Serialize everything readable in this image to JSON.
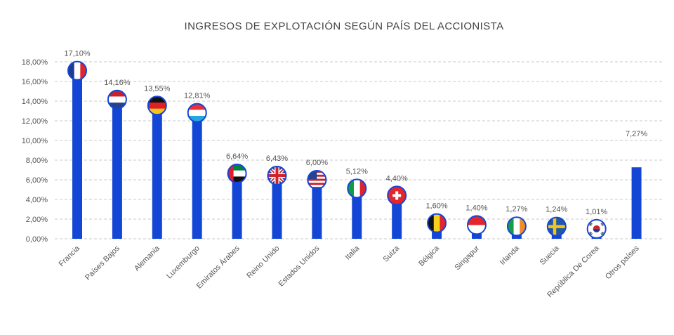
{
  "chart_data": {
    "type": "bar",
    "title": "INGRESOS DE EXPLOTACIÓN SEGÚN PAÍS DEL ACCIONISTA",
    "xlabel": "",
    "ylabel": "",
    "ylim": [
      0,
      18
    ],
    "yticks": [
      "0,00%",
      "2,00%",
      "4,00%",
      "6,00%",
      "8,00%",
      "10,00%",
      "12,00%",
      "14,00%",
      "16,00%",
      "18,00%"
    ],
    "grid": true,
    "bar_color": "#1446d6",
    "categories": [
      "Francia",
      "Países Bajos",
      "Alemania",
      "Luxemburgo",
      "Emiratos Árabes",
      "Reino Unido",
      "Estados Unidos",
      "Italia",
      "Suiza",
      "Bélgica",
      "Singapur",
      "Irlanda",
      "Suecia",
      "República De Corea",
      "Otros países"
    ],
    "values": [
      17.1,
      14.16,
      13.55,
      12.81,
      6.64,
      6.43,
      6.0,
      5.12,
      4.4,
      1.6,
      1.4,
      1.27,
      1.24,
      1.01,
      7.27
    ],
    "data_labels": [
      "17,10%",
      "14,16%",
      "13,55%",
      "12,81%",
      "6,64%",
      "6,43%",
      "6,00%",
      "5,12%",
      "4,40%",
      "1,60%",
      "1,40%",
      "1,27%",
      "1,24%",
      "1,01%",
      "7,27%"
    ],
    "flag_icons": [
      "flag-france-icon",
      "flag-netherlands-icon",
      "flag-germany-icon",
      "flag-luxembourg-icon",
      "flag-uae-icon",
      "flag-uk-icon",
      "flag-usa-icon",
      "flag-italy-icon",
      "flag-switzerland-icon",
      "flag-belgium-icon",
      "flag-singapore-icon",
      "flag-ireland-icon",
      "flag-sweden-icon",
      "flag-south-korea-icon",
      ""
    ]
  }
}
